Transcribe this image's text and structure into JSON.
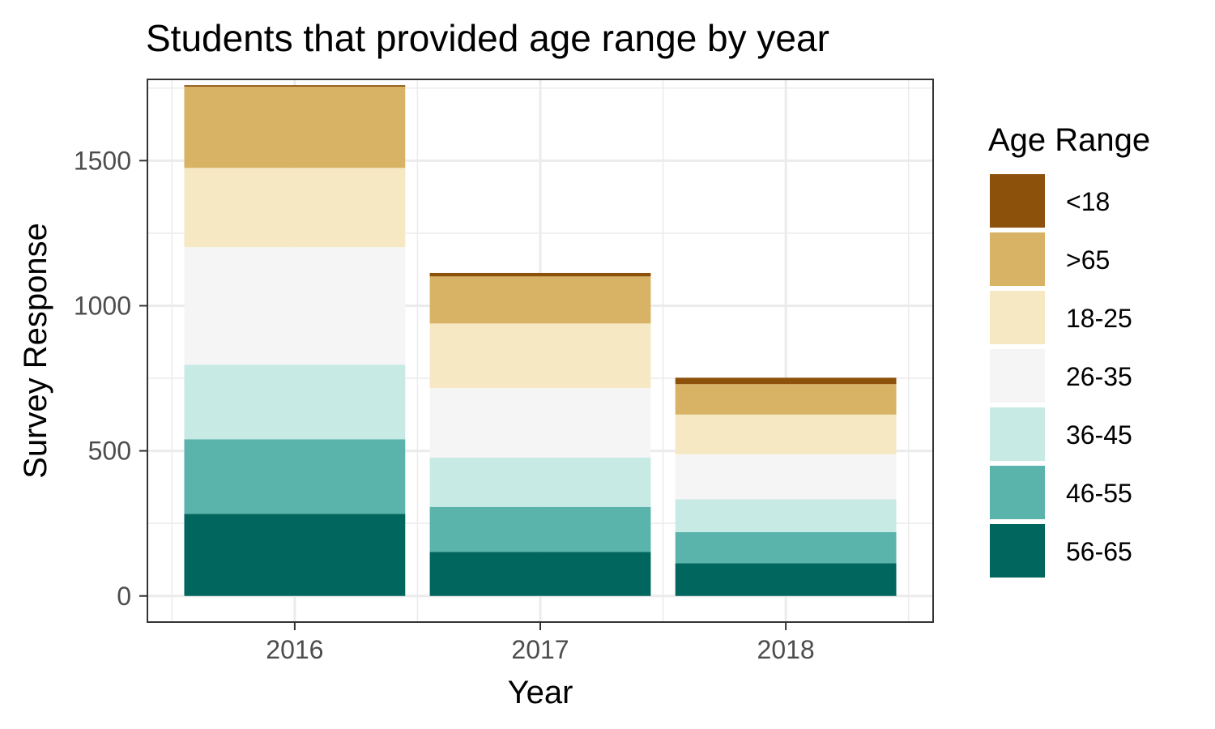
{
  "chart_data": {
    "type": "bar",
    "stacked": true,
    "title": "Students that provided age range by year",
    "xlabel": "Year",
    "ylabel": "Survey Response",
    "categories": [
      "2016",
      "2017",
      "2018"
    ],
    "ylim": [
      -90,
      1780
    ],
    "yticks": [
      0,
      500,
      1000,
      1500
    ],
    "grid": true,
    "legend": {
      "title": "Age Range",
      "position": "right"
    },
    "series": [
      {
        "name": "56-65",
        "color": "#01665e",
        "values": [
          283,
          152,
          113
        ]
      },
      {
        "name": "46-55",
        "color": "#5ab4ac",
        "values": [
          257,
          155,
          107
        ]
      },
      {
        "name": "36-45",
        "color": "#c7eae5",
        "values": [
          257,
          170,
          113
        ]
      },
      {
        "name": "26-35",
        "color": "#f5f5f5",
        "values": [
          405,
          240,
          155
        ]
      },
      {
        "name": "18-25",
        "color": "#f6e8c3",
        "values": [
          273,
          222,
          137
        ]
      },
      {
        "name": ">65",
        "color": "#d8b365",
        "values": [
          280,
          162,
          105
        ]
      },
      {
        "name": "<18",
        "color": "#8c510a",
        "values": [
          5,
          12,
          22
        ]
      }
    ],
    "legend_order": [
      "<18",
      ">65",
      "18-25",
      "26-35",
      "36-45",
      "46-55",
      "56-65"
    ]
  }
}
